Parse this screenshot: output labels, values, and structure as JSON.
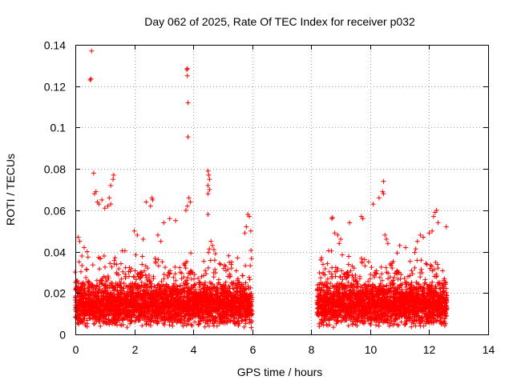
{
  "chart_data": {
    "type": "scatter",
    "title": "Day 062 of 2025, Rate Of TEC Index for receiver p032",
    "xlabel": "GPS time / hours",
    "ylabel": "ROTI / TECUs",
    "xlim": [
      0,
      14
    ],
    "ylim": [
      0,
      0.14
    ],
    "x_ticks": [
      "0",
      "2",
      "4",
      "6",
      "8",
      "10",
      "12",
      "14"
    ],
    "y_ticks": [
      "0",
      "0.02",
      "0.04",
      "0.06",
      "0.08",
      "0.1",
      "0.12",
      "0.14"
    ],
    "x_tick_values": [
      0,
      2,
      4,
      6,
      8,
      10,
      12,
      14
    ],
    "y_tick_values": [
      0,
      0.02,
      0.04,
      0.06,
      0.08,
      0.1,
      0.12,
      0.14
    ],
    "grid": true,
    "marker": "+",
    "color": "#ff0000",
    "segments": [
      {
        "start": 0.0,
        "end": 6.0,
        "base": 0.015,
        "spread": 0.012
      },
      {
        "start": 8.2,
        "end": 12.6,
        "base": 0.016,
        "spread": 0.012
      }
    ],
    "highlight_points": [
      [
        0.55,
        0.137
      ],
      [
        0.5,
        0.123
      ],
      [
        0.53,
        0.1235
      ],
      [
        3.78,
        0.128
      ],
      [
        3.8,
        0.1285
      ],
      [
        3.8,
        0.125
      ],
      [
        3.82,
        0.112
      ],
      [
        3.82,
        0.0955
      ],
      [
        0.62,
        0.078
      ],
      [
        1.3,
        0.077
      ],
      [
        1.28,
        0.075
      ],
      [
        1.2,
        0.072
      ],
      [
        4.5,
        0.079
      ],
      [
        4.52,
        0.077
      ],
      [
        4.55,
        0.075
      ],
      [
        4.5,
        0.072
      ],
      [
        4.55,
        0.07
      ],
      [
        4.5,
        0.068
      ],
      [
        2.6,
        0.066
      ],
      [
        2.62,
        0.065
      ],
      [
        2.4,
        0.064
      ],
      [
        2.55,
        0.062
      ],
      [
        0.7,
        0.069
      ],
      [
        0.65,
        0.068
      ],
      [
        0.75,
        0.064
      ],
      [
        0.8,
        0.063
      ],
      [
        0.9,
        0.065
      ],
      [
        1.15,
        0.066
      ],
      [
        1.2,
        0.063
      ],
      [
        1.0,
        0.061
      ],
      [
        1.1,
        0.062
      ],
      [
        3.85,
        0.066
      ],
      [
        3.9,
        0.064
      ],
      [
        3.8,
        0.062
      ],
      [
        3.75,
        0.06
      ],
      [
        4.5,
        0.058
      ],
      [
        3.2,
        0.056
      ],
      [
        3.4,
        0.055
      ],
      [
        3.0,
        0.054
      ],
      [
        5.85,
        0.058
      ],
      [
        5.9,
        0.057
      ],
      [
        5.8,
        0.052
      ],
      [
        5.95,
        0.05
      ],
      [
        5.75,
        0.049
      ],
      [
        8.7,
        0.056
      ],
      [
        8.72,
        0.0565
      ],
      [
        9.7,
        0.057
      ],
      [
        9.75,
        0.056
      ],
      [
        9.3,
        0.054
      ],
      [
        10.45,
        0.074
      ],
      [
        10.42,
        0.069
      ],
      [
        10.45,
        0.068
      ],
      [
        10.3,
        0.066
      ],
      [
        10.1,
        0.063
      ],
      [
        12.25,
        0.06
      ],
      [
        12.2,
        0.059
      ],
      [
        12.15,
        0.057
      ],
      [
        12.3,
        0.054
      ],
      [
        12.58,
        0.052
      ],
      [
        12.1,
        0.05
      ],
      [
        12.0,
        0.049
      ],
      [
        11.7,
        0.048
      ],
      [
        11.8,
        0.047
      ],
      [
        11.6,
        0.045
      ],
      [
        8.8,
        0.049
      ],
      [
        8.9,
        0.048
      ],
      [
        9.0,
        0.046
      ],
      [
        8.95,
        0.044
      ],
      [
        10.5,
        0.048
      ],
      [
        10.55,
        0.046
      ],
      [
        10.6,
        0.044
      ],
      [
        11.0,
        0.043
      ],
      [
        11.2,
        0.042
      ],
      [
        0.1,
        0.047
      ],
      [
        0.15,
        0.045
      ],
      [
        0.3,
        0.042
      ],
      [
        0.4,
        0.04
      ],
      [
        2.0,
        0.05
      ],
      [
        2.1,
        0.048
      ],
      [
        2.3,
        0.046
      ],
      [
        2.8,
        0.048
      ],
      [
        2.9,
        0.045
      ],
      [
        4.6,
        0.045
      ],
      [
        4.65,
        0.043
      ],
      [
        4.7,
        0.041
      ],
      [
        4.75,
        0.039
      ],
      [
        5.2,
        0.038
      ],
      [
        5.5,
        0.037
      ],
      [
        5.3,
        0.035
      ]
    ]
  }
}
